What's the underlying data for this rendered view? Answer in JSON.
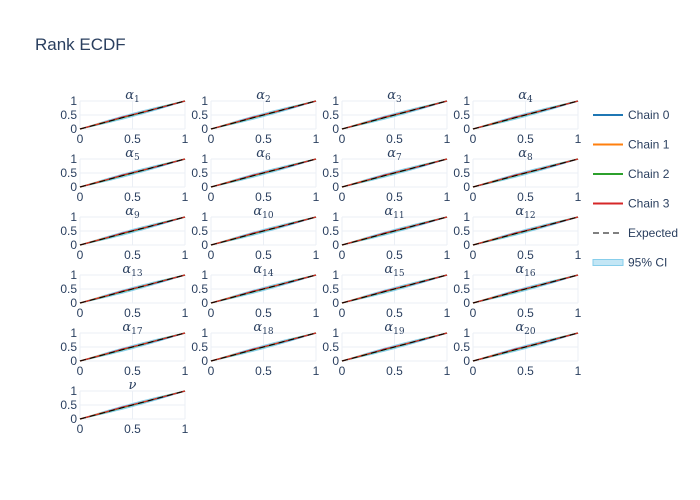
{
  "chart_data": {
    "type": "line",
    "title": "Rank ECDF",
    "x_range": [
      0,
      1
    ],
    "y_range": [
      0,
      1
    ],
    "x_ticks": [
      "0",
      "0.5",
      "1"
    ],
    "y_ticks": [
      "0",
      "0.5",
      "1"
    ],
    "grid": true,
    "legend_placement": "right",
    "panels": [
      {
        "base": "α",
        "sub": "1"
      },
      {
        "base": "α",
        "sub": "2"
      },
      {
        "base": "α",
        "sub": "3"
      },
      {
        "base": "α",
        "sub": "4"
      },
      {
        "base": "α",
        "sub": "5"
      },
      {
        "base": "α",
        "sub": "6"
      },
      {
        "base": "α",
        "sub": "7"
      },
      {
        "base": "α",
        "sub": "8"
      },
      {
        "base": "α",
        "sub": "9"
      },
      {
        "base": "α",
        "sub": "10"
      },
      {
        "base": "α",
        "sub": "11"
      },
      {
        "base": "α",
        "sub": "12"
      },
      {
        "base": "α",
        "sub": "13"
      },
      {
        "base": "α",
        "sub": "14"
      },
      {
        "base": "α",
        "sub": "15"
      },
      {
        "base": "α",
        "sub": "16"
      },
      {
        "base": "α",
        "sub": "17"
      },
      {
        "base": "α",
        "sub": "18"
      },
      {
        "base": "α",
        "sub": "19"
      },
      {
        "base": "α",
        "sub": "20"
      },
      {
        "base": "ν",
        "sub": ""
      }
    ],
    "series": [
      {
        "name": "Chain 0",
        "color": "#1f77b4",
        "style": "solid",
        "points": [
          [
            0,
            0
          ],
          [
            0.2,
            0.2
          ],
          [
            0.4,
            0.41
          ],
          [
            0.6,
            0.6
          ],
          [
            0.8,
            0.79
          ],
          [
            1,
            1
          ]
        ]
      },
      {
        "name": "Chain 1",
        "color": "#ff7f0e",
        "style": "solid",
        "points": [
          [
            0,
            0
          ],
          [
            0.2,
            0.21
          ],
          [
            0.4,
            0.4
          ],
          [
            0.6,
            0.61
          ],
          [
            0.8,
            0.8
          ],
          [
            1,
            1
          ]
        ]
      },
      {
        "name": "Chain 2",
        "color": "#2ca02c",
        "style": "solid",
        "points": [
          [
            0,
            0
          ],
          [
            0.2,
            0.19
          ],
          [
            0.4,
            0.4
          ],
          [
            0.6,
            0.59
          ],
          [
            0.8,
            0.81
          ],
          [
            1,
            1
          ]
        ]
      },
      {
        "name": "Chain 3",
        "color": "#d62728",
        "style": "solid",
        "points": [
          [
            0,
            0
          ],
          [
            0.2,
            0.2
          ],
          [
            0.4,
            0.42
          ],
          [
            0.6,
            0.6
          ],
          [
            0.8,
            0.8
          ],
          [
            1,
            1
          ]
        ]
      },
      {
        "name": "Expected",
        "color": "#000000",
        "style": "dash",
        "points": [
          [
            0,
            0
          ],
          [
            1,
            1
          ]
        ]
      },
      {
        "name": "95% CI",
        "color": "#87ceeb",
        "style": "band",
        "half_width": 0.05
      }
    ]
  }
}
